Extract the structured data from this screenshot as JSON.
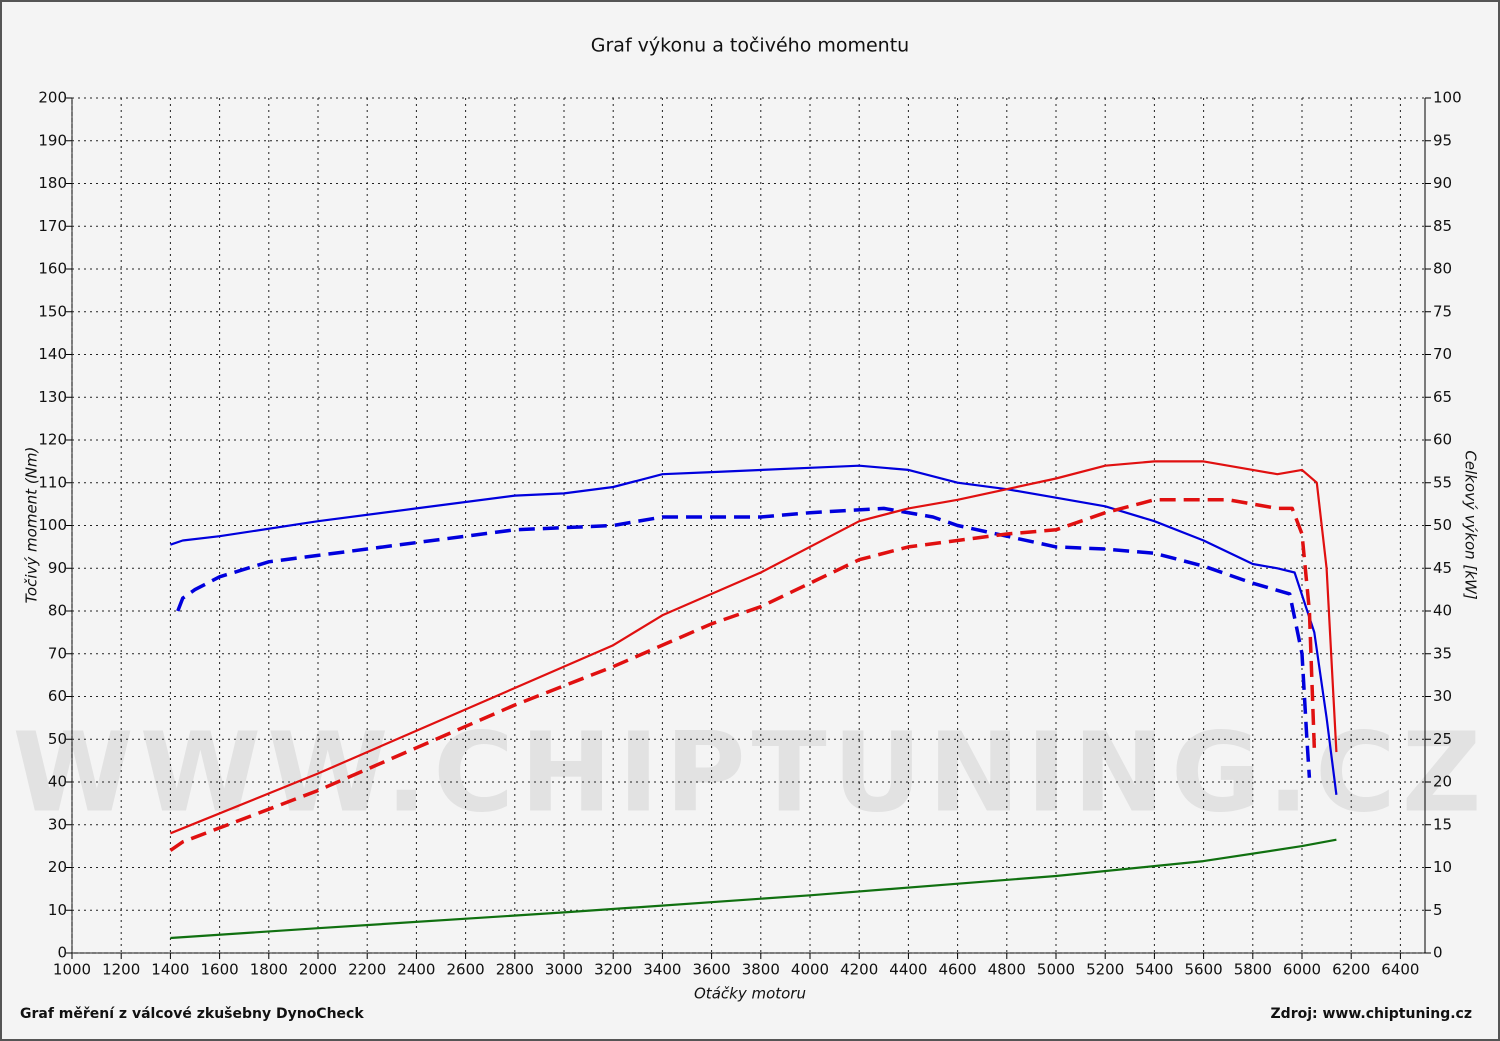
{
  "chart_data": {
    "type": "line",
    "title": "Graf výkonu a točivého momentu",
    "x_label": "Otáčky motoru",
    "y_label": "Točivý moment (Nm)",
    "y2_label": "Celkový výkon [kW]",
    "watermark": "WWW.CHIPTUNING.CZ",
    "footer_left": "Graf měření z válcové zkušebny DynoCheck",
    "footer_right": "Zdroj: www.chiptuning.cz",
    "xlim": [
      1000,
      6500
    ],
    "xticks": [
      1000,
      1200,
      1400,
      1600,
      1800,
      2000,
      2200,
      2400,
      2600,
      2800,
      3000,
      3200,
      3400,
      3600,
      3800,
      4000,
      4200,
      4400,
      4600,
      4800,
      5000,
      5200,
      5400,
      5600,
      5800,
      6000,
      6200,
      6400
    ],
    "ylim": [
      0,
      200
    ],
    "yticks": [
      0,
      10,
      20,
      30,
      40,
      50,
      60,
      70,
      80,
      90,
      100,
      110,
      120,
      130,
      140,
      150,
      160,
      170,
      180,
      190,
      200
    ],
    "y2lim": [
      0,
      100
    ],
    "y2ticks": [
      0,
      5,
      10,
      15,
      20,
      25,
      30,
      35,
      40,
      45,
      50,
      55,
      60,
      65,
      70,
      75,
      80,
      85,
      90,
      95,
      100
    ],
    "grid": true,
    "series": [
      {
        "color": "#0000dd",
        "dashed": false,
        "axis": "y",
        "x": [
          1400,
          1450,
          1600,
          2000,
          2400,
          2800,
          3000,
          3200,
          3400,
          3600,
          4000,
          4200,
          4400,
          4600,
          4800,
          5000,
          5200,
          5400,
          5600,
          5800,
          5900,
          5970,
          6050,
          6100,
          6140
        ],
        "values": [
          95.5,
          96.5,
          97.5,
          101,
          104,
          107,
          107.5,
          109,
          112,
          112.5,
          113.5,
          114,
          113,
          110,
          108.5,
          106.5,
          104.5,
          101,
          96.5,
          91,
          90,
          89,
          75,
          55,
          37
        ]
      },
      {
        "color": "#0000dd",
        "dashed": true,
        "axis": "y",
        "x": [
          1430,
          1450,
          1500,
          1600,
          1800,
          2000,
          2400,
          2800,
          3200,
          3400,
          3800,
          4000,
          4300,
          4500,
          4600,
          5000,
          5200,
          5400,
          5600,
          5800,
          5950,
          6000,
          6020,
          6030
        ],
        "values": [
          80,
          83,
          85,
          88,
          91.5,
          93,
          96,
          99,
          100,
          102,
          102,
          103,
          104,
          102,
          100,
          95,
          94.5,
          93.5,
          90.5,
          86.5,
          84,
          70,
          50,
          41
        ]
      },
      {
        "color": "#e01010",
        "dashed": false,
        "axis": "y2",
        "x": [
          1400,
          2000,
          2400,
          2800,
          3200,
          3400,
          3800,
          4200,
          4400,
          4600,
          5000,
          5200,
          5400,
          5600,
          5800,
          5900,
          6000,
          6060,
          6100,
          6140
        ],
        "values": [
          14,
          21,
          26,
          31,
          36,
          39.5,
          44.5,
          50.5,
          52,
          53,
          55.5,
          57,
          57.5,
          57.5,
          56.5,
          56,
          56.5,
          55,
          45,
          23.5
        ]
      },
      {
        "color": "#e01010",
        "dashed": true,
        "axis": "y2",
        "x": [
          1400,
          1450,
          2000,
          2400,
          2800,
          3200,
          3600,
          3800,
          4200,
          4400,
          4800,
          5000,
          5200,
          5400,
          5600,
          5700,
          5900,
          5960,
          6000,
          6030,
          6050
        ],
        "values": [
          12,
          13,
          19,
          24,
          29,
          33.5,
          38.5,
          40.5,
          46,
          47.5,
          49,
          49.5,
          51.5,
          53,
          53,
          53,
          52,
          52,
          49,
          40,
          24
        ]
      },
      {
        "color": "#107010",
        "dashed": false,
        "axis": "y2",
        "x": [
          1400,
          2000,
          3000,
          4000,
          5000,
          5600,
          6000,
          6140
        ],
        "values": [
          1.75,
          2.9,
          4.75,
          6.75,
          9,
          10.75,
          12.5,
          13.25
        ]
      }
    ]
  }
}
